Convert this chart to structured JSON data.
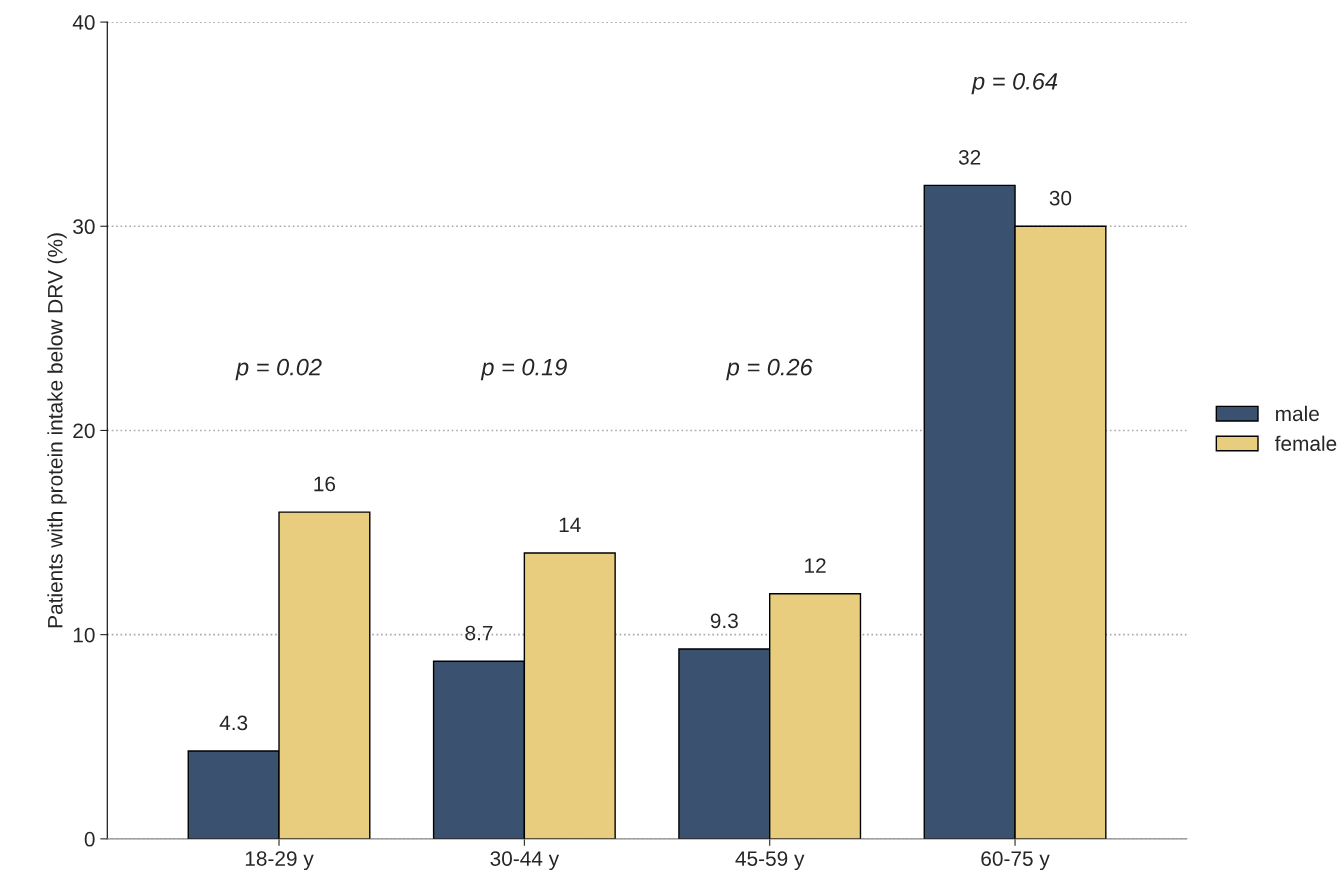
{
  "chart_data": {
    "type": "bar",
    "ylabel": "Patients with protein intake below DRV (%)",
    "categories": [
      "18-29 y",
      "30-44 y",
      "45-59 y",
      "60-75 y"
    ],
    "series": [
      {
        "name": "male",
        "color": "#3b5170",
        "values": [
          4.3,
          8.7,
          9.3,
          32
        ]
      },
      {
        "name": "female",
        "color": "#e8cd7e",
        "values": [
          16,
          14,
          12,
          30
        ]
      }
    ],
    "ylim": [
      0,
      40
    ],
    "yticks": [
      0,
      10,
      20,
      30,
      40
    ],
    "grid": "y",
    "legend": "right",
    "data_labels": true,
    "annotations": [
      "p = 0.02",
      "p = 0.19",
      "p = 0.26",
      "p = 0.64"
    ]
  }
}
